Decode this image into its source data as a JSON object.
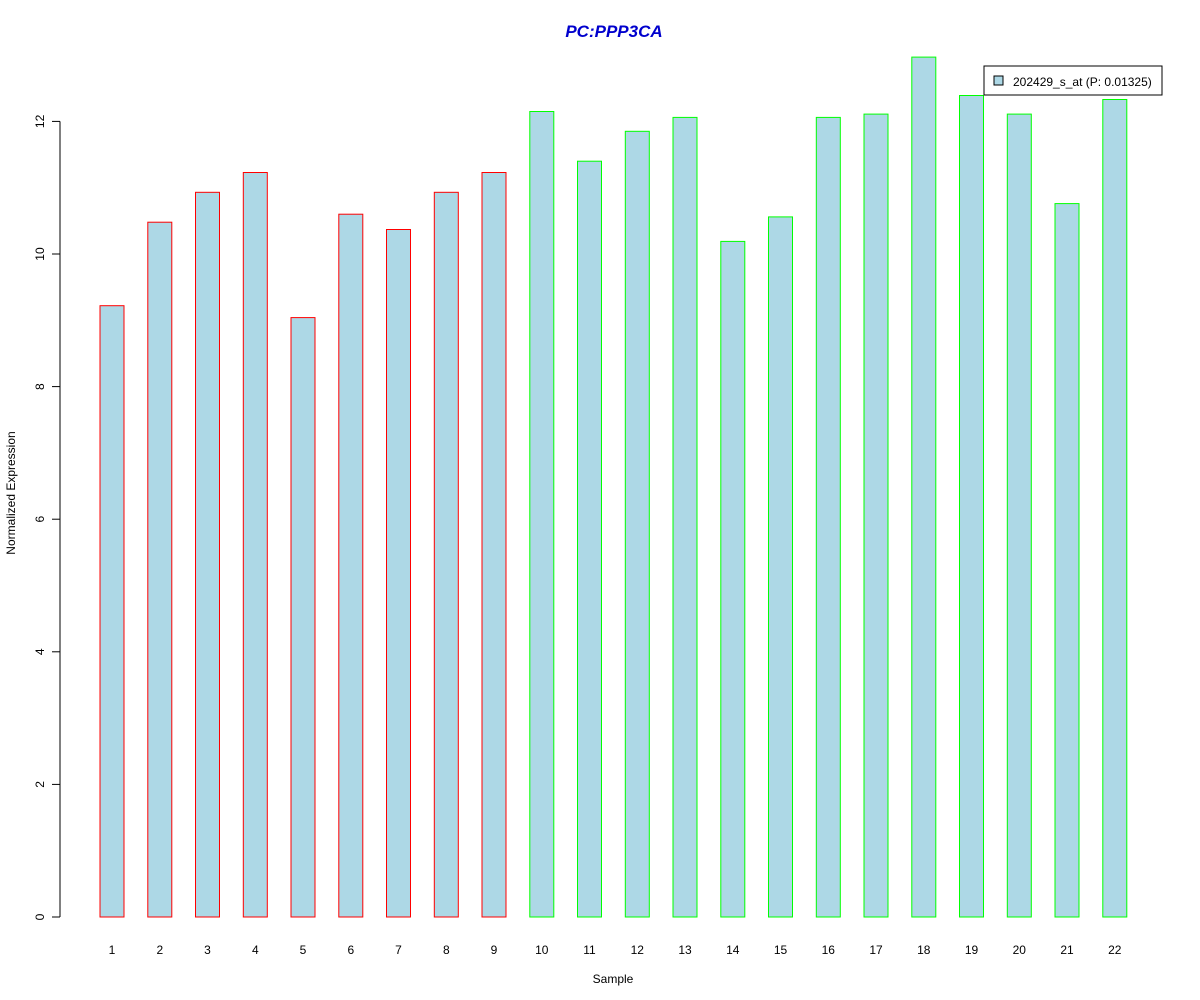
{
  "chart_data": {
    "type": "bar",
    "title": "PC:PPP3CA",
    "title_color": "#0000CD",
    "xlabel": "Sample",
    "ylabel": "Normalized Expression",
    "categories": [
      "1",
      "2",
      "3",
      "4",
      "5",
      "6",
      "7",
      "8",
      "9",
      "10",
      "11",
      "12",
      "13",
      "14",
      "15",
      "16",
      "17",
      "18",
      "19",
      "20",
      "21",
      "22"
    ],
    "values": [
      9.22,
      10.48,
      10.93,
      11.23,
      9.04,
      10.6,
      10.37,
      10.93,
      11.23,
      12.15,
      11.4,
      11.85,
      12.06,
      10.19,
      10.56,
      12.06,
      12.11,
      12.97,
      12.39,
      12.11,
      10.76,
      12.33
    ],
    "groups": [
      "red",
      "red",
      "red",
      "red",
      "red",
      "red",
      "red",
      "red",
      "red",
      "green",
      "green",
      "green",
      "green",
      "green",
      "green",
      "green",
      "green",
      "green",
      "green",
      "green",
      "green",
      "green"
    ],
    "group_colors": {
      "red": "#FF0000",
      "green": "#00FF00"
    },
    "bar_fill": "#ADD8E6",
    "yticks": [
      "0",
      "2",
      "4",
      "6",
      "8",
      "10",
      "12"
    ],
    "ylim": [
      0,
      13
    ],
    "grid": false,
    "legend": {
      "placement": "top-right",
      "entries": [
        {
          "label": "202429_s_at (P: 0.01325)",
          "color": "#ADD8E6"
        }
      ]
    }
  }
}
